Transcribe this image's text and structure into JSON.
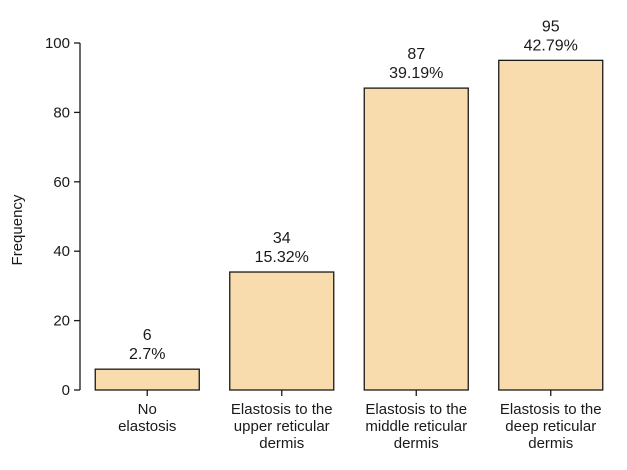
{
  "chart_data": {
    "type": "bar",
    "title": "",
    "xlabel": "",
    "ylabel": "Frequency",
    "ylim": [
      0,
      100
    ],
    "yticks": [
      0,
      20,
      40,
      60,
      80,
      100
    ],
    "grid": false,
    "legend": "none",
    "categories": [
      [
        "No",
        "elastosis"
      ],
      [
        "Elastosis  to the",
        "upper reticular",
        "dermis"
      ],
      [
        "Elastosis to the",
        "middle reticular",
        "dermis"
      ],
      [
        "Elastosis to the",
        "deep reticular",
        "dermis"
      ]
    ],
    "values": [
      6,
      34,
      87,
      95
    ],
    "data_labels": [
      [
        "6",
        "2.7%"
      ],
      [
        "34",
        "15.32%"
      ],
      [
        "87",
        "39.19%"
      ],
      [
        "95",
        "42.79%"
      ]
    ],
    "bar_color": "#f9dcae",
    "bar_edge_color": "#1a1a1a"
  }
}
